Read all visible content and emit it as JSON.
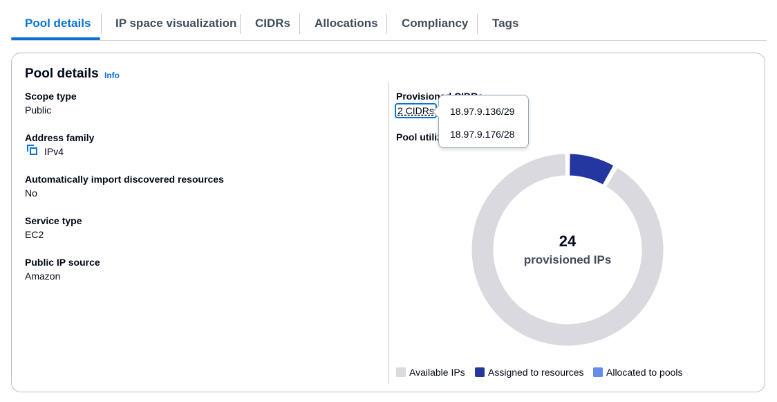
{
  "tabs": [
    {
      "label": "Pool details",
      "active": true
    },
    {
      "label": "IP space visualization",
      "active": false
    },
    {
      "label": "CIDRs",
      "active": false
    },
    {
      "label": "Allocations",
      "active": false
    },
    {
      "label": "Compliancy",
      "active": false
    },
    {
      "label": "Tags",
      "active": false
    }
  ],
  "card": {
    "title": "Pool details",
    "info_label": "Info"
  },
  "details": {
    "scope_type": {
      "label": "Scope type",
      "value": "Public"
    },
    "address_family": {
      "label": "Address family",
      "value": "IPv4",
      "icon": "copy-icon"
    },
    "auto_import": {
      "label": "Automatically import discovered resources",
      "value": "No"
    },
    "service_type": {
      "label": "Service type",
      "value": "EC2"
    },
    "public_ip_source": {
      "label": "Public IP source",
      "value": "Amazon"
    }
  },
  "provisioned": {
    "label": "Provisioned CIDRs",
    "link_text": "2 CIDRs",
    "utilization_label": "Pool utilization",
    "popover_items": [
      "18.97.9.136/29",
      "18.97.9.176/28"
    ]
  },
  "donut": {
    "center_value": "24",
    "center_label": "provisioned IPs"
  },
  "chart_data": {
    "type": "pie",
    "categories": [
      "Available IPs",
      "Assigned to resources",
      "Allocated to pools"
    ],
    "values": [
      22,
      2,
      0
    ],
    "colors": [
      "#d9d9df",
      "#2437a0",
      "#688ae8"
    ],
    "style": "donut"
  }
}
